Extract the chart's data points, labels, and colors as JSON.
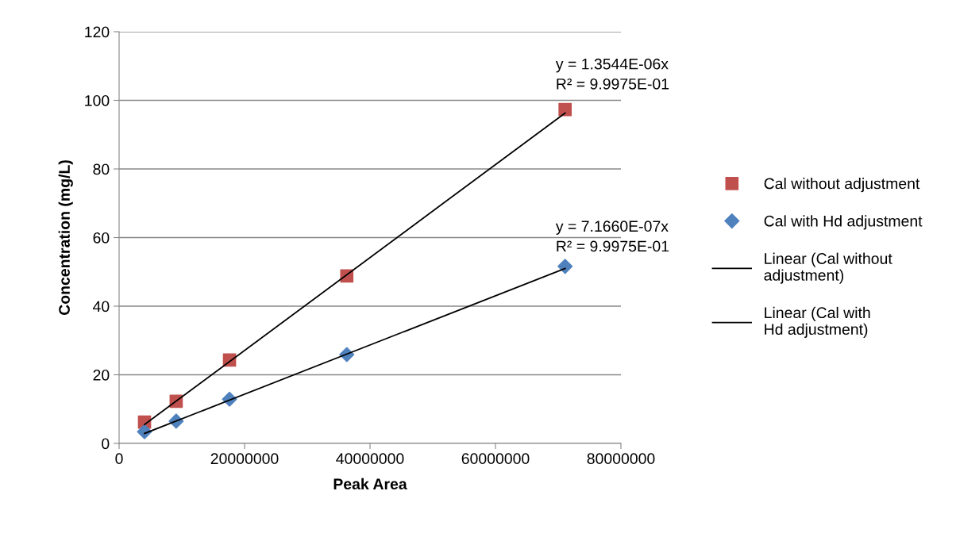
{
  "chart_data": {
    "type": "scatter",
    "xlabel": "Peak Area",
    "ylabel": "Concentration (mg/L)",
    "xlim": [
      0,
      80000000
    ],
    "xticks": [
      0,
      20000000,
      40000000,
      60000000,
      80000000
    ],
    "ylim": [
      0,
      120
    ],
    "yticks": [
      0,
      20,
      40,
      60,
      80,
      100,
      120
    ],
    "grid": "y",
    "legend": "right",
    "series": [
      {
        "name": "Cal without adjustment",
        "marker": "square",
        "color": "#c0504d",
        "x": [
          4050000,
          9100000,
          17600000,
          36300000,
          71100000
        ],
        "values": [
          6.2,
          12.3,
          24.3,
          48.8,
          97.3
        ]
      },
      {
        "name": "Cal with Hd adjustment",
        "marker": "diamond",
        "color": "#4f81bd",
        "x": [
          4050000,
          9100000,
          17600000,
          36300000,
          71100000
        ],
        "values": [
          3.4,
          6.5,
          12.9,
          25.9,
          51.6
        ]
      },
      {
        "name": "Linear (Cal without adjustment)",
        "type": "line",
        "marker": "none",
        "color": "#000000",
        "x": [
          4050000,
          71100000
        ],
        "values": [
          5.5,
          96.3
        ]
      },
      {
        "name": "Linear (Cal with Hd adjustment)",
        "type": "line",
        "marker": "none",
        "color": "#000000",
        "x": [
          4050000,
          71100000
        ],
        "values": [
          2.9,
          51.0
        ]
      }
    ],
    "annotations": [
      "y = 1.3544E-06x\nR² = 9.9975E-01",
      "y = 7.1660E-07x\nR² = 9.9975E-01"
    ]
  }
}
